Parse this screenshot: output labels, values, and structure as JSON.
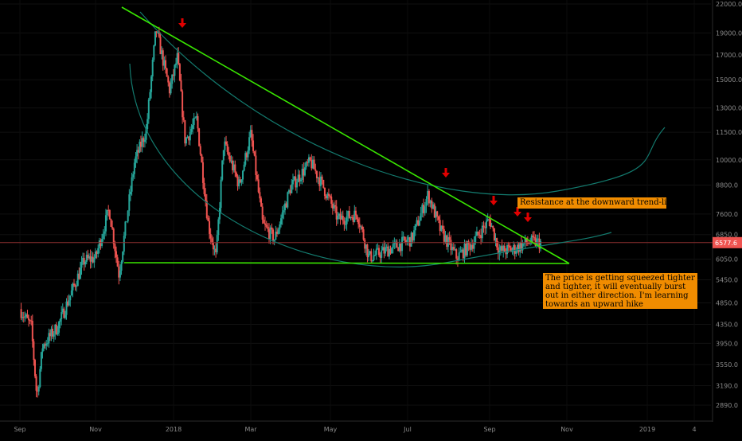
{
  "chart_data": {
    "type": "candlestick",
    "y_scale": "log",
    "ylim": [
      2600,
      22000
    ],
    "y_ticks": [
      "22000.0",
      "19000.0",
      "17000.0",
      "15000.0",
      "13000.0",
      "11500.0",
      "10000.0",
      "8800.0",
      "7600.0",
      "6850.0",
      "6050.0",
      "5450.0",
      "4850.0",
      "4350.0",
      "3950.0",
      "3550.0",
      "3190.0",
      "2890.0"
    ],
    "x_ticks": [
      "Sep",
      "Nov",
      "2018",
      "Mar",
      "May",
      "Jul",
      "Sep",
      "Nov",
      "2019",
      "4"
    ],
    "last_price_label": "6577.6",
    "last_price": 6577.6,
    "colors": {
      "up": "#26a69a",
      "down": "#ef5350",
      "trendline": "#39e600",
      "arc": "#137a6e",
      "arrow": "#e00000",
      "note_bg": "#f08c00",
      "price_line": "#8b2f2f"
    },
    "monthly_ohlc_approx": [
      {
        "month": "2017-09",
        "open": 4700,
        "high": 4950,
        "low": 2980,
        "close": 4300
      },
      {
        "month": "2017-10",
        "open": 4300,
        "high": 6200,
        "low": 4100,
        "close": 6100
      },
      {
        "month": "2017-11",
        "open": 6100,
        "high": 11500,
        "low": 5500,
        "close": 10000
      },
      {
        "month": "2017-12",
        "open": 10000,
        "high": 19600,
        "low": 10800,
        "close": 13800
      },
      {
        "month": "2018-01",
        "open": 13800,
        "high": 17200,
        "low": 9500,
        "close": 10200
      },
      {
        "month": "2018-02",
        "open": 10200,
        "high": 11700,
        "low": 6000,
        "close": 10400
      },
      {
        "month": "2018-03",
        "open": 10400,
        "high": 11600,
        "low": 6500,
        "close": 6900
      },
      {
        "month": "2018-04",
        "open": 6900,
        "high": 9800,
        "low": 6500,
        "close": 9200
      },
      {
        "month": "2018-05",
        "open": 9200,
        "high": 10000,
        "low": 7100,
        "close": 7500
      },
      {
        "month": "2018-06",
        "open": 7500,
        "high": 7800,
        "low": 5800,
        "close": 6400
      },
      {
        "month": "2018-07",
        "open": 6400,
        "high": 8500,
        "low": 6300,
        "close": 7700
      },
      {
        "month": "2018-08",
        "open": 7700,
        "high": 7900,
        "low": 5900,
        "close": 7000
      },
      {
        "month": "2018-09",
        "open": 7000,
        "high": 7400,
        "low": 6200,
        "close": 6600
      },
      {
        "month": "2018-10",
        "open": 6600,
        "high": 6700,
        "low": 6400,
        "close": 6577.6
      }
    ],
    "annotations": [
      "Resistance at the downward trend-line",
      "The price is getting squeezed tighter and tighter, it will eventually burst out in either direction. I'm learning towards an upward hike"
    ]
  }
}
